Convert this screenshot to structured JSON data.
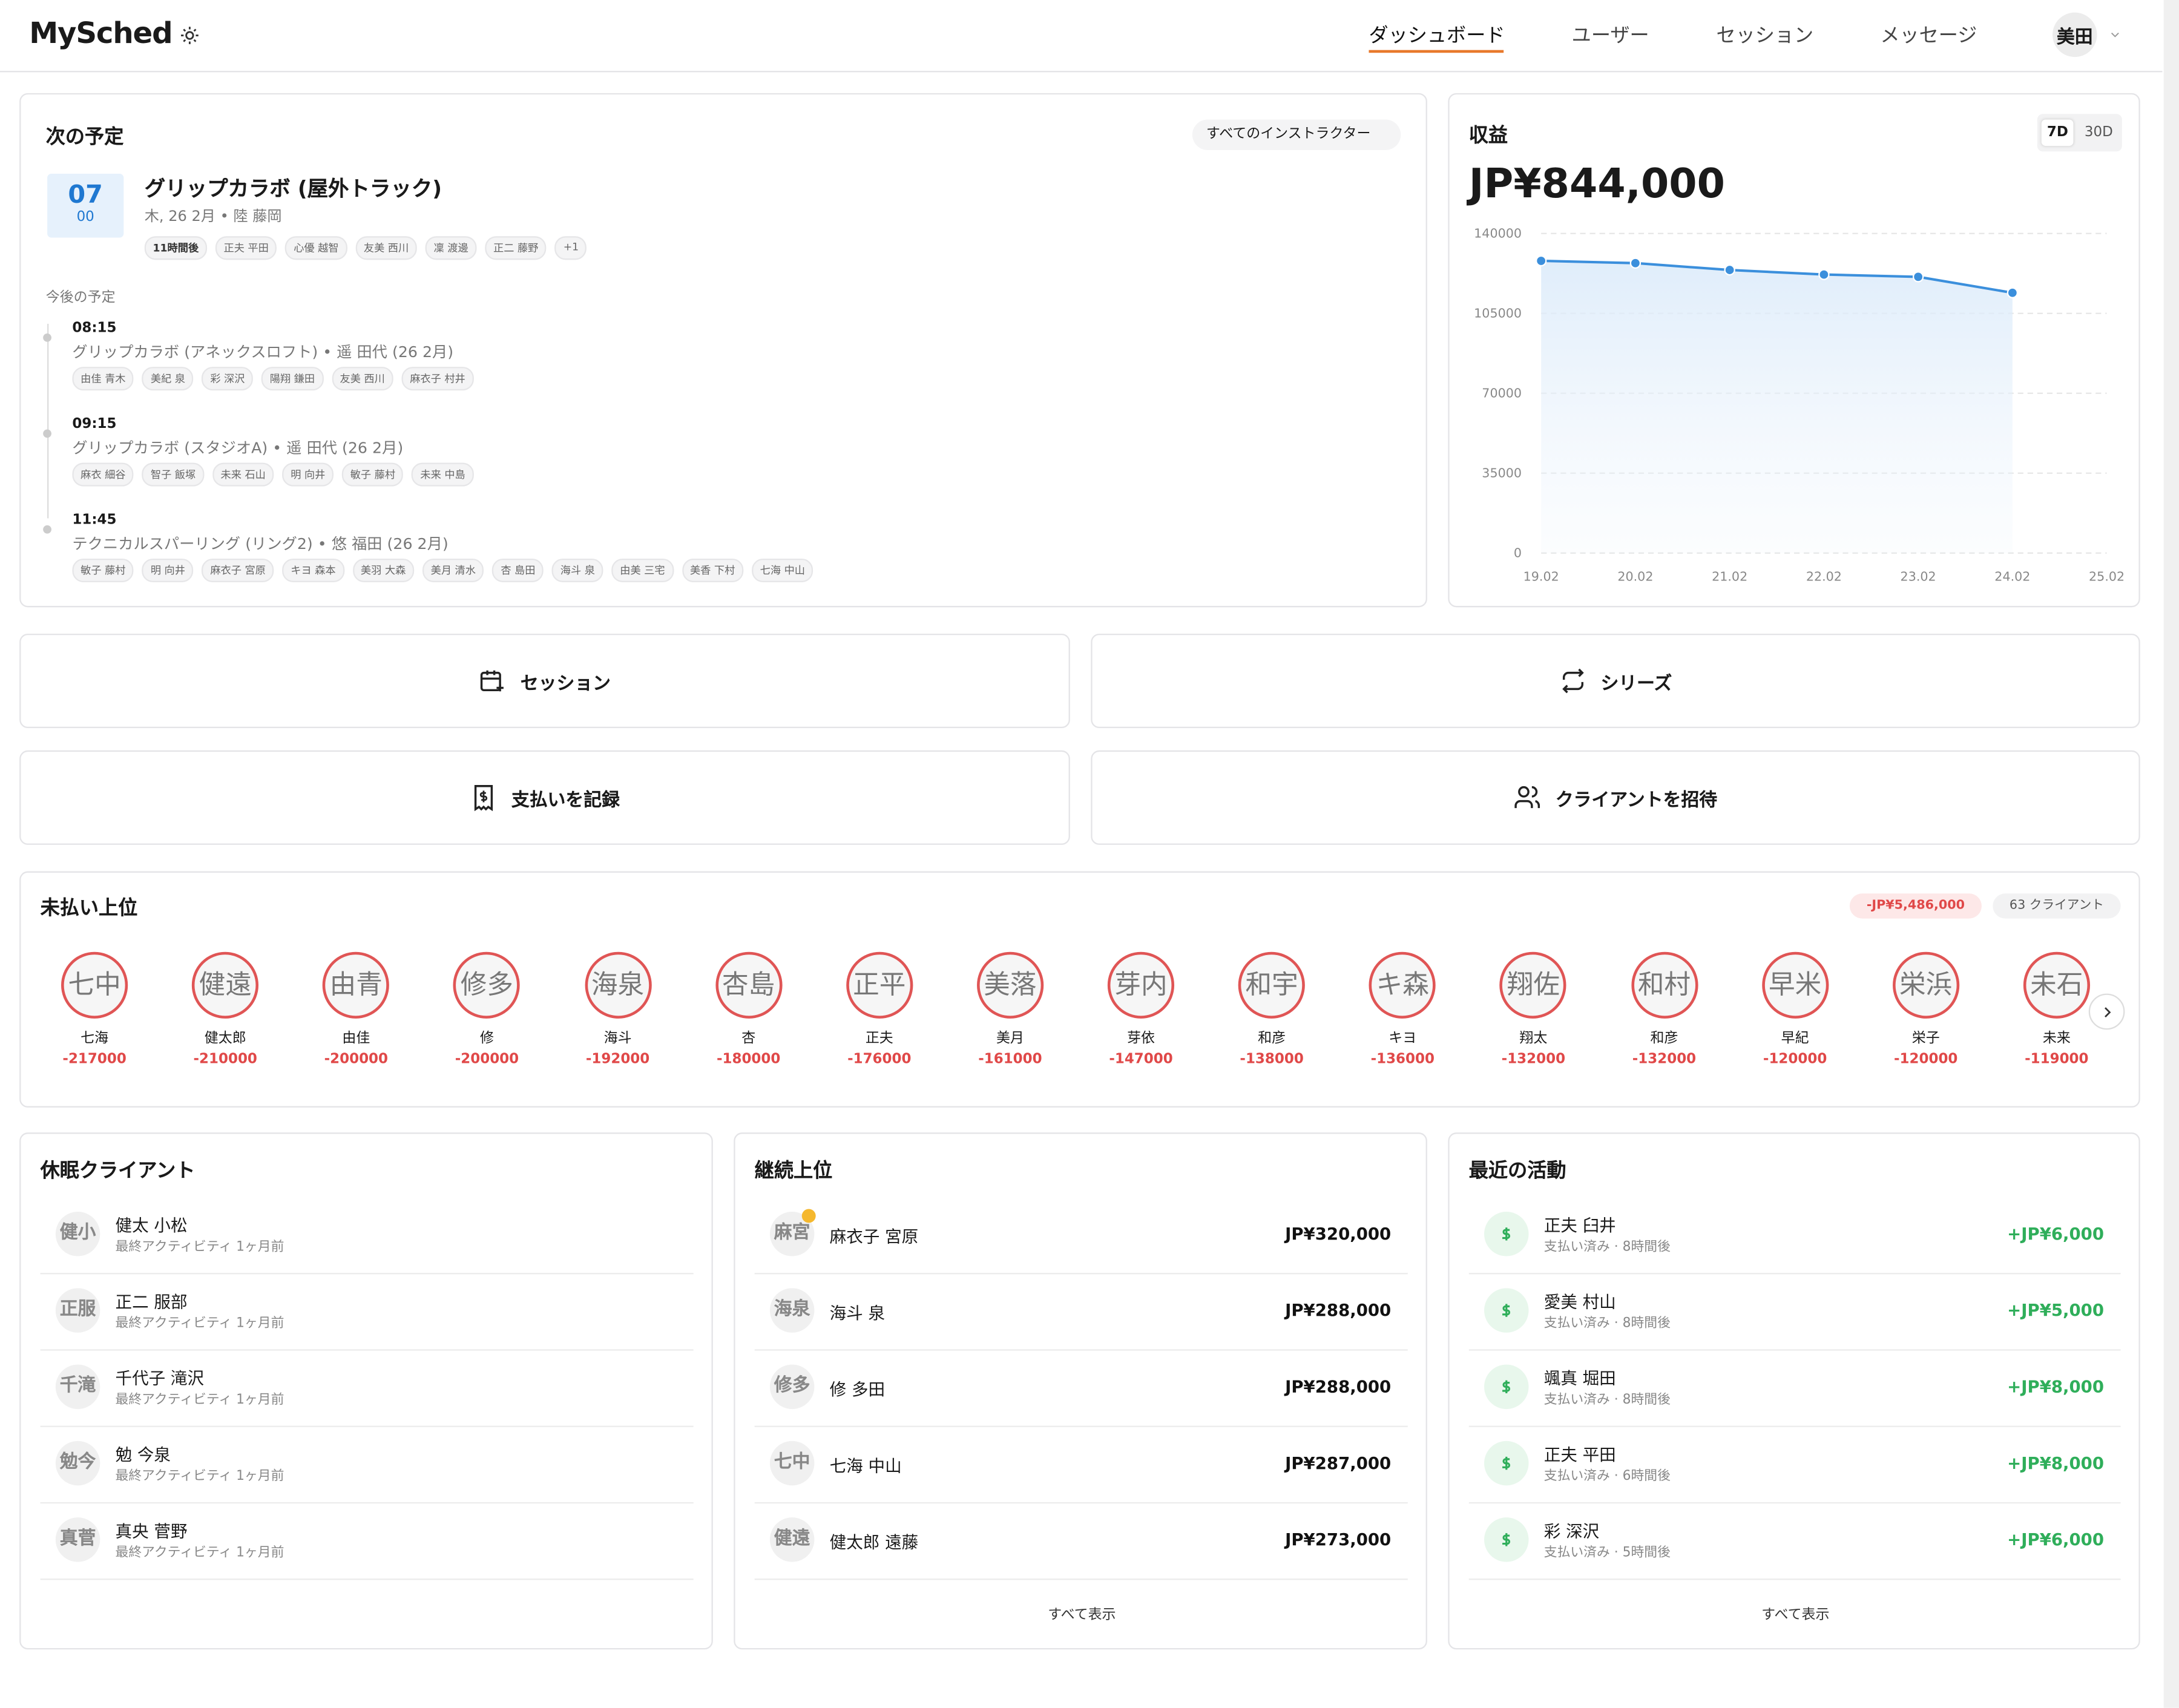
{
  "header": {
    "logo": "MySched",
    "nav": [
      "ダッシュボード",
      "ユーザー",
      "セッション",
      "メッセージ"
    ],
    "user": "美田"
  },
  "next": {
    "title": "次の予定",
    "filter": "すべてのインストラクター",
    "day": "07",
    "time": "00",
    "event_title": "グリップカラボ (屋外トラック)",
    "meta": "木, 26 2月 • 陸 藤岡",
    "tags": [
      "11時間後",
      "正夫 平田",
      "心優 越智",
      "友美 西川",
      "凜 渡邊",
      "正二 藤野",
      "+1"
    ],
    "upcoming_label": "今後の予定",
    "upcoming": [
      {
        "time": "08:15",
        "title": "グリップカラボ (アネックスロフト) • 遥 田代 (26 2月)",
        "people": [
          "由佳 青木",
          "美紀 泉",
          "彩 深沢",
          "陽翔 鎌田",
          "友美 西川",
          "麻衣子 村井"
        ]
      },
      {
        "time": "09:15",
        "title": "グリップカラボ (スタジオA) • 遥 田代 (26 2月)",
        "people": [
          "麻衣 細谷",
          "智子 飯塚",
          "未来 石山",
          "明 向井",
          "敏子 藤村",
          "未来 中島"
        ]
      },
      {
        "time": "11:45",
        "title": "テクニカルスパーリング (リング2) • 悠 福田 (26 2月)",
        "people": [
          "敏子 藤村",
          "明 向井",
          "麻衣子 宮原",
          "キヨ 森本",
          "美羽 大森",
          "美月 清水",
          "杏 島田",
          "海斗 泉",
          "由美 三宅",
          "美香 下村",
          "七海 中山"
        ]
      }
    ]
  },
  "revenue": {
    "title": "収益",
    "ranges": [
      "7D",
      "30D"
    ],
    "total": "JP¥844,000",
    "chart": {
      "type": "line",
      "categories": [
        "19.02",
        "20.02",
        "21.02",
        "22.02",
        "23.02",
        "24.02",
        "25.02"
      ],
      "values": [
        128000,
        127000,
        124000,
        122000,
        121000,
        114000,
        null
      ],
      "color": "#3b8fdc",
      "ylim": [
        0,
        140000
      ],
      "yticks": [
        0,
        35000,
        70000,
        105000,
        140000
      ],
      "grid": true
    }
  },
  "actions": [
    "セッション",
    "シリーズ",
    "支払いを記録",
    "クライアントを招待"
  ],
  "unpaid": {
    "title": "未払い上位",
    "total": "-JP¥5,486,000",
    "count": "63 クライアント",
    "clients": [
      {
        "initials": "七中",
        "name": "七海",
        "amount": -217000
      },
      {
        "initials": "健遠",
        "name": "健太郎",
        "amount": -210000
      },
      {
        "initials": "由青",
        "name": "由佳",
        "amount": -200000
      },
      {
        "initials": "修多",
        "name": "修",
        "amount": -200000
      },
      {
        "initials": "海泉",
        "name": "海斗",
        "amount": -192000
      },
      {
        "initials": "杏島",
        "name": "杏",
        "amount": -180000
      },
      {
        "initials": "正平",
        "name": "正夫",
        "amount": -176000
      },
      {
        "initials": "美落",
        "name": "美月",
        "amount": -161000
      },
      {
        "initials": "芽内",
        "name": "芽依",
        "amount": -147000
      },
      {
        "initials": "和宇",
        "name": "和彦",
        "amount": -138000
      },
      {
        "initials": "キ森",
        "name": "キヨ",
        "amount": -136000
      },
      {
        "initials": "翔佐",
        "name": "翔太",
        "amount": -132000
      },
      {
        "initials": "和村",
        "name": "和彦",
        "amount": -132000
      },
      {
        "initials": "早米",
        "name": "早紀",
        "amount": -120000
      },
      {
        "initials": "栄浜",
        "name": "栄子",
        "amount": -120000
      },
      {
        "initials": "未石",
        "name": "未来",
        "amount": -119000
      }
    ]
  },
  "dormant": {
    "title": "休眠クライアント",
    "rows": [
      {
        "initials": "健小",
        "name": "健太 小松",
        "sub": "最終アクティビティ 1ヶ月前"
      },
      {
        "initials": "正服",
        "name": "正二 服部",
        "sub": "最終アクティビティ 1ヶ月前"
      },
      {
        "initials": "千滝",
        "name": "千代子 滝沢",
        "sub": "最終アクティビティ 1ヶ月前"
      },
      {
        "initials": "勉今",
        "name": "勉 今泉",
        "sub": "最終アクティビティ 1ヶ月前"
      },
      {
        "initials": "真菅",
        "name": "真央 菅野",
        "sub": "最終アクティビティ 1ヶ月前"
      }
    ]
  },
  "top": {
    "title": "継続上位",
    "rows": [
      {
        "initials": "麻宮",
        "name": "麻衣子 宮原",
        "amount": "JP¥320,000"
      },
      {
        "initials": "海泉",
        "name": "海斗 泉",
        "amount": "JP¥288,000"
      },
      {
        "initials": "修多",
        "name": "修 多田",
        "amount": "JP¥288,000"
      },
      {
        "initials": "七中",
        "name": "七海 中山",
        "amount": "JP¥287,000"
      },
      {
        "initials": "健遠",
        "name": "健太郎 遠藤",
        "amount": "JP¥273,000"
      }
    ],
    "more": "すべて表示"
  },
  "activity": {
    "title": "最近の活動",
    "rows": [
      {
        "name": "正夫 臼井",
        "sub": "支払い済み · 8時間後",
        "amount": "+JP¥6,000"
      },
      {
        "name": "愛美 村山",
        "sub": "支払い済み · 8時間後",
        "amount": "+JP¥5,000"
      },
      {
        "name": "颯真 堀田",
        "sub": "支払い済み · 8時間後",
        "amount": "+JP¥8,000"
      },
      {
        "name": "正夫 平田",
        "sub": "支払い済み · 6時間後",
        "amount": "+JP¥8,000"
      },
      {
        "name": "彩 深沢",
        "sub": "支払い済み · 5時間後",
        "amount": "+JP¥6,000"
      }
    ],
    "more": "すべて表示"
  }
}
